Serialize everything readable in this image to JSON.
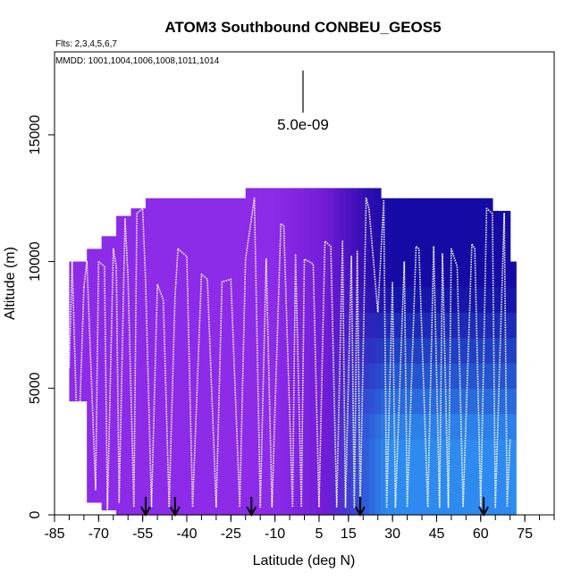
{
  "chart_data": {
    "type": "heatmap",
    "title": "ATOM3 Southbound CONBEU_GEOS5",
    "subtitle_flights": "Flts: 2,3,4,5,6,7",
    "subtitle_dates": "MMDD: 1001,1004,1006,1008,1011,1014",
    "xlabel": "Latitude (deg N)",
    "ylabel": "Altitude (m)",
    "xlim": [
      -85,
      85
    ],
    "ylim": [
      0,
      18200
    ],
    "x_ticks": [
      -85,
      -70,
      -55,
      -40,
      -25,
      -10,
      5,
      15,
      30,
      45,
      60,
      75
    ],
    "x_tick_labels": [
      "-85",
      "-70",
      "-55",
      "-40",
      "-25",
      "-10",
      "5",
      "15",
      "30",
      "45",
      "60",
      "75"
    ],
    "y_ticks": [
      0,
      5000,
      10000,
      15000
    ],
    "y_tick_labels": [
      "0",
      "5000",
      "10000",
      "15000"
    ],
    "scale_label": "5.0e-09",
    "grid": false,
    "colors": {
      "high_south": "#8c2be8",
      "mid": "#5a10c8",
      "upper_north": "#0d0aa0",
      "lower_north": "#2f8af0",
      "flight_track": "#ffffff",
      "arrow": "#000000"
    },
    "arrow_latitudes": [
      -54,
      -44,
      -18,
      19,
      61
    ],
    "columns": [
      {
        "lat_start": -80,
        "lat_end": -74,
        "top": 10000,
        "bottom": 4500
      },
      {
        "lat_start": -74,
        "lat_end": -69,
        "top": 10500,
        "bottom": 500
      },
      {
        "lat_start": -69,
        "lat_end": -64,
        "top": 11000,
        "bottom": 200
      },
      {
        "lat_start": -64,
        "lat_end": -59,
        "top": 11800,
        "bottom": 0
      },
      {
        "lat_start": -59,
        "lat_end": -54,
        "top": 12100,
        "bottom": 0
      },
      {
        "lat_start": -54,
        "lat_end": -20,
        "top": 12500,
        "bottom": 0
      },
      {
        "lat_start": -20,
        "lat_end": 26,
        "top": 12900,
        "bottom": 0
      },
      {
        "lat_start": 26,
        "lat_end": 64,
        "top": 12500,
        "bottom": 0
      },
      {
        "lat_start": 64,
        "lat_end": 70,
        "top": 12000,
        "bottom": 0
      },
      {
        "lat_start": 70,
        "lat_end": 72,
        "top": 10000,
        "bottom": 0
      }
    ],
    "flight_profiles": [
      {
        "x": [
          -80,
          -79,
          -77,
          -75
        ],
        "y": [
          5800,
          10000,
          2000,
          9000
        ]
      },
      {
        "x": [
          -75,
          -74,
          -71,
          -70
        ],
        "y": [
          9000,
          10000,
          1000,
          10000
        ]
      },
      {
        "x": [
          -70,
          -68,
          -67,
          -65,
          -64,
          -63,
          -61
        ],
        "y": [
          10000,
          9800,
          200,
          10500,
          9800,
          500,
          11700
        ]
      },
      {
        "x": [
          -61,
          -60,
          -58,
          -57,
          -55,
          -54,
          -52,
          -50
        ],
        "y": [
          11700,
          9400,
          300,
          11900,
          12100,
          9200,
          300,
          9100
        ]
      },
      {
        "x": [
          -50,
          -48,
          -46,
          -44,
          -43,
          -40,
          -38,
          -35,
          -33,
          -30
        ],
        "y": [
          9100,
          8500,
          300,
          8600,
          10500,
          10200,
          300,
          9500,
          9300,
          300
        ]
      },
      {
        "x": [
          -30,
          -28,
          -25,
          -22,
          -20,
          -17,
          -15,
          -13,
          -11
        ],
        "y": [
          300,
          9200,
          9300,
          300,
          10100,
          12500,
          300,
          10100,
          300
        ]
      },
      {
        "x": [
          -11,
          -8,
          -7,
          -4,
          -3,
          -1,
          0,
          3,
          5,
          7,
          9,
          11
        ],
        "y": [
          300,
          11500,
          11400,
          300,
          10300,
          300,
          10100,
          9900,
          300,
          10800,
          10600,
          300
        ]
      },
      {
        "x": [
          11,
          13,
          14,
          16,
          17,
          18,
          19,
          21,
          22,
          25
        ],
        "y": [
          300,
          10800,
          300,
          10200,
          300,
          10400,
          300,
          12500,
          12100,
          8000
        ]
      },
      {
        "x": [
          25,
          27,
          28,
          30,
          31,
          34,
          35,
          38,
          39,
          42,
          44
        ],
        "y": [
          8000,
          12400,
          300,
          9200,
          300,
          10000,
          300,
          10600,
          10500,
          300,
          10600
        ]
      },
      {
        "x": [
          44,
          46,
          47,
          49,
          50,
          52,
          54,
          57,
          58,
          60,
          62,
          64,
          65,
          68,
          69,
          70
        ],
        "y": [
          10600,
          300,
          10300,
          300,
          10500,
          9800,
          300,
          10700,
          10500,
          300,
          12100,
          11900,
          300,
          11900,
          300,
          3000
        ]
      }
    ]
  }
}
